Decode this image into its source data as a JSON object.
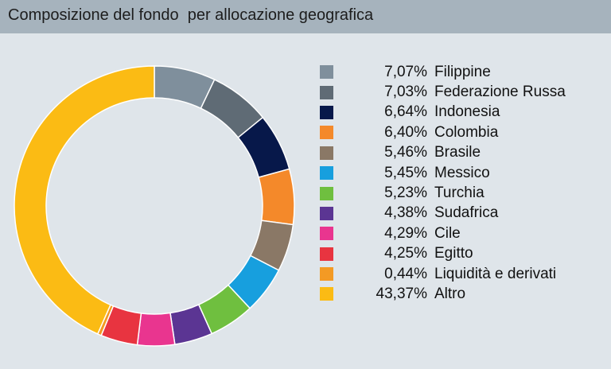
{
  "chart_data": {
    "type": "pie",
    "title": "Composizione del fondo  per allocazione geografica",
    "donut": true,
    "start_angle_deg": 0,
    "direction": "clockwise",
    "legend_position": "right",
    "slices": [
      {
        "label": "Filippine",
        "value_label": "7,07%",
        "value": 7.07,
        "color": "#7f8f9c"
      },
      {
        "label": "Federazione Russa",
        "value_label": "7,03%",
        "value": 7.03,
        "color": "#5f6b75"
      },
      {
        "label": "Indonesia",
        "value_label": "6,64%",
        "value": 6.64,
        "color": "#07184a"
      },
      {
        "label": "Colombia",
        "value_label": "6,40%",
        "value": 6.4,
        "color": "#f4892a"
      },
      {
        "label": "Brasile",
        "value_label": "5,46%",
        "value": 5.46,
        "color": "#8a7866"
      },
      {
        "label": "Messico",
        "value_label": "5,45%",
        "value": 5.45,
        "color": "#179fde"
      },
      {
        "label": "Turchia",
        "value_label": "5,23%",
        "value": 5.23,
        "color": "#6fbf3f"
      },
      {
        "label": "Sudafrica",
        "value_label": "4,38%",
        "value": 4.38,
        "color": "#5b3593"
      },
      {
        "label": "Cile",
        "value_label": "4,29%",
        "value": 4.29,
        "color": "#e9358f"
      },
      {
        "label": "Egitto",
        "value_label": "4,25%",
        "value": 4.25,
        "color": "#e83440"
      },
      {
        "label": "Liquidità e derivati",
        "value_label": "0,44%",
        "value": 0.44,
        "color": "#f39a24"
      },
      {
        "label": "Altro",
        "value_label": "43,37%",
        "value": 43.37,
        "color": "#fbbb14"
      }
    ]
  }
}
